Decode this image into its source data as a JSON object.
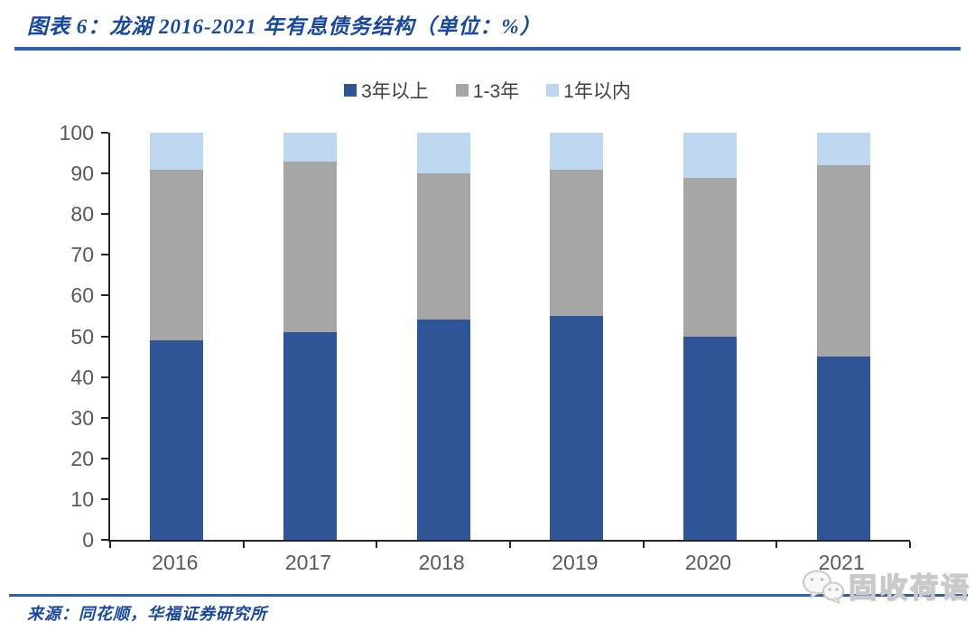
{
  "header": {
    "title": "图表 6：龙湖 2016-2021 年有息债务结构（单位：%）"
  },
  "chart_data": {
    "type": "bar",
    "stacked": true,
    "title": "龙湖 2016-2021 年有息债务结构",
    "unit": "%",
    "categories": [
      "2016",
      "2017",
      "2018",
      "2019",
      "2020",
      "2021"
    ],
    "series": [
      {
        "name": "3年以上",
        "color": "#2F5597",
        "values": [
          49,
          51,
          54,
          55,
          50,
          45
        ]
      },
      {
        "name": "1-3年",
        "color": "#A6A6A6",
        "values": [
          42,
          42,
          36,
          36,
          39,
          47
        ]
      },
      {
        "name": "1年以内",
        "color": "#BDD7EE",
        "values": [
          9,
          7,
          10,
          9,
          11,
          8
        ]
      }
    ],
    "cumulative_tops_note": "series stack bottom-to-top; dark blue tops: 49/51/54/55/50/45, gray tops: 91/93/90/91/89/92, all bars total 100",
    "ylim": [
      0,
      100
    ],
    "yticks": [
      0,
      10,
      20,
      30,
      40,
      50,
      60,
      70,
      80,
      90,
      100
    ],
    "legend_position": "top",
    "grid": false
  },
  "footer": {
    "source": "来源：同花顺，华福证券研究所",
    "watermark": "固收荷语"
  },
  "colors": {
    "title_text": "#17479E",
    "rule": "#2E5FA8",
    "axis_text": "#595959",
    "axis_line": "#262626"
  }
}
